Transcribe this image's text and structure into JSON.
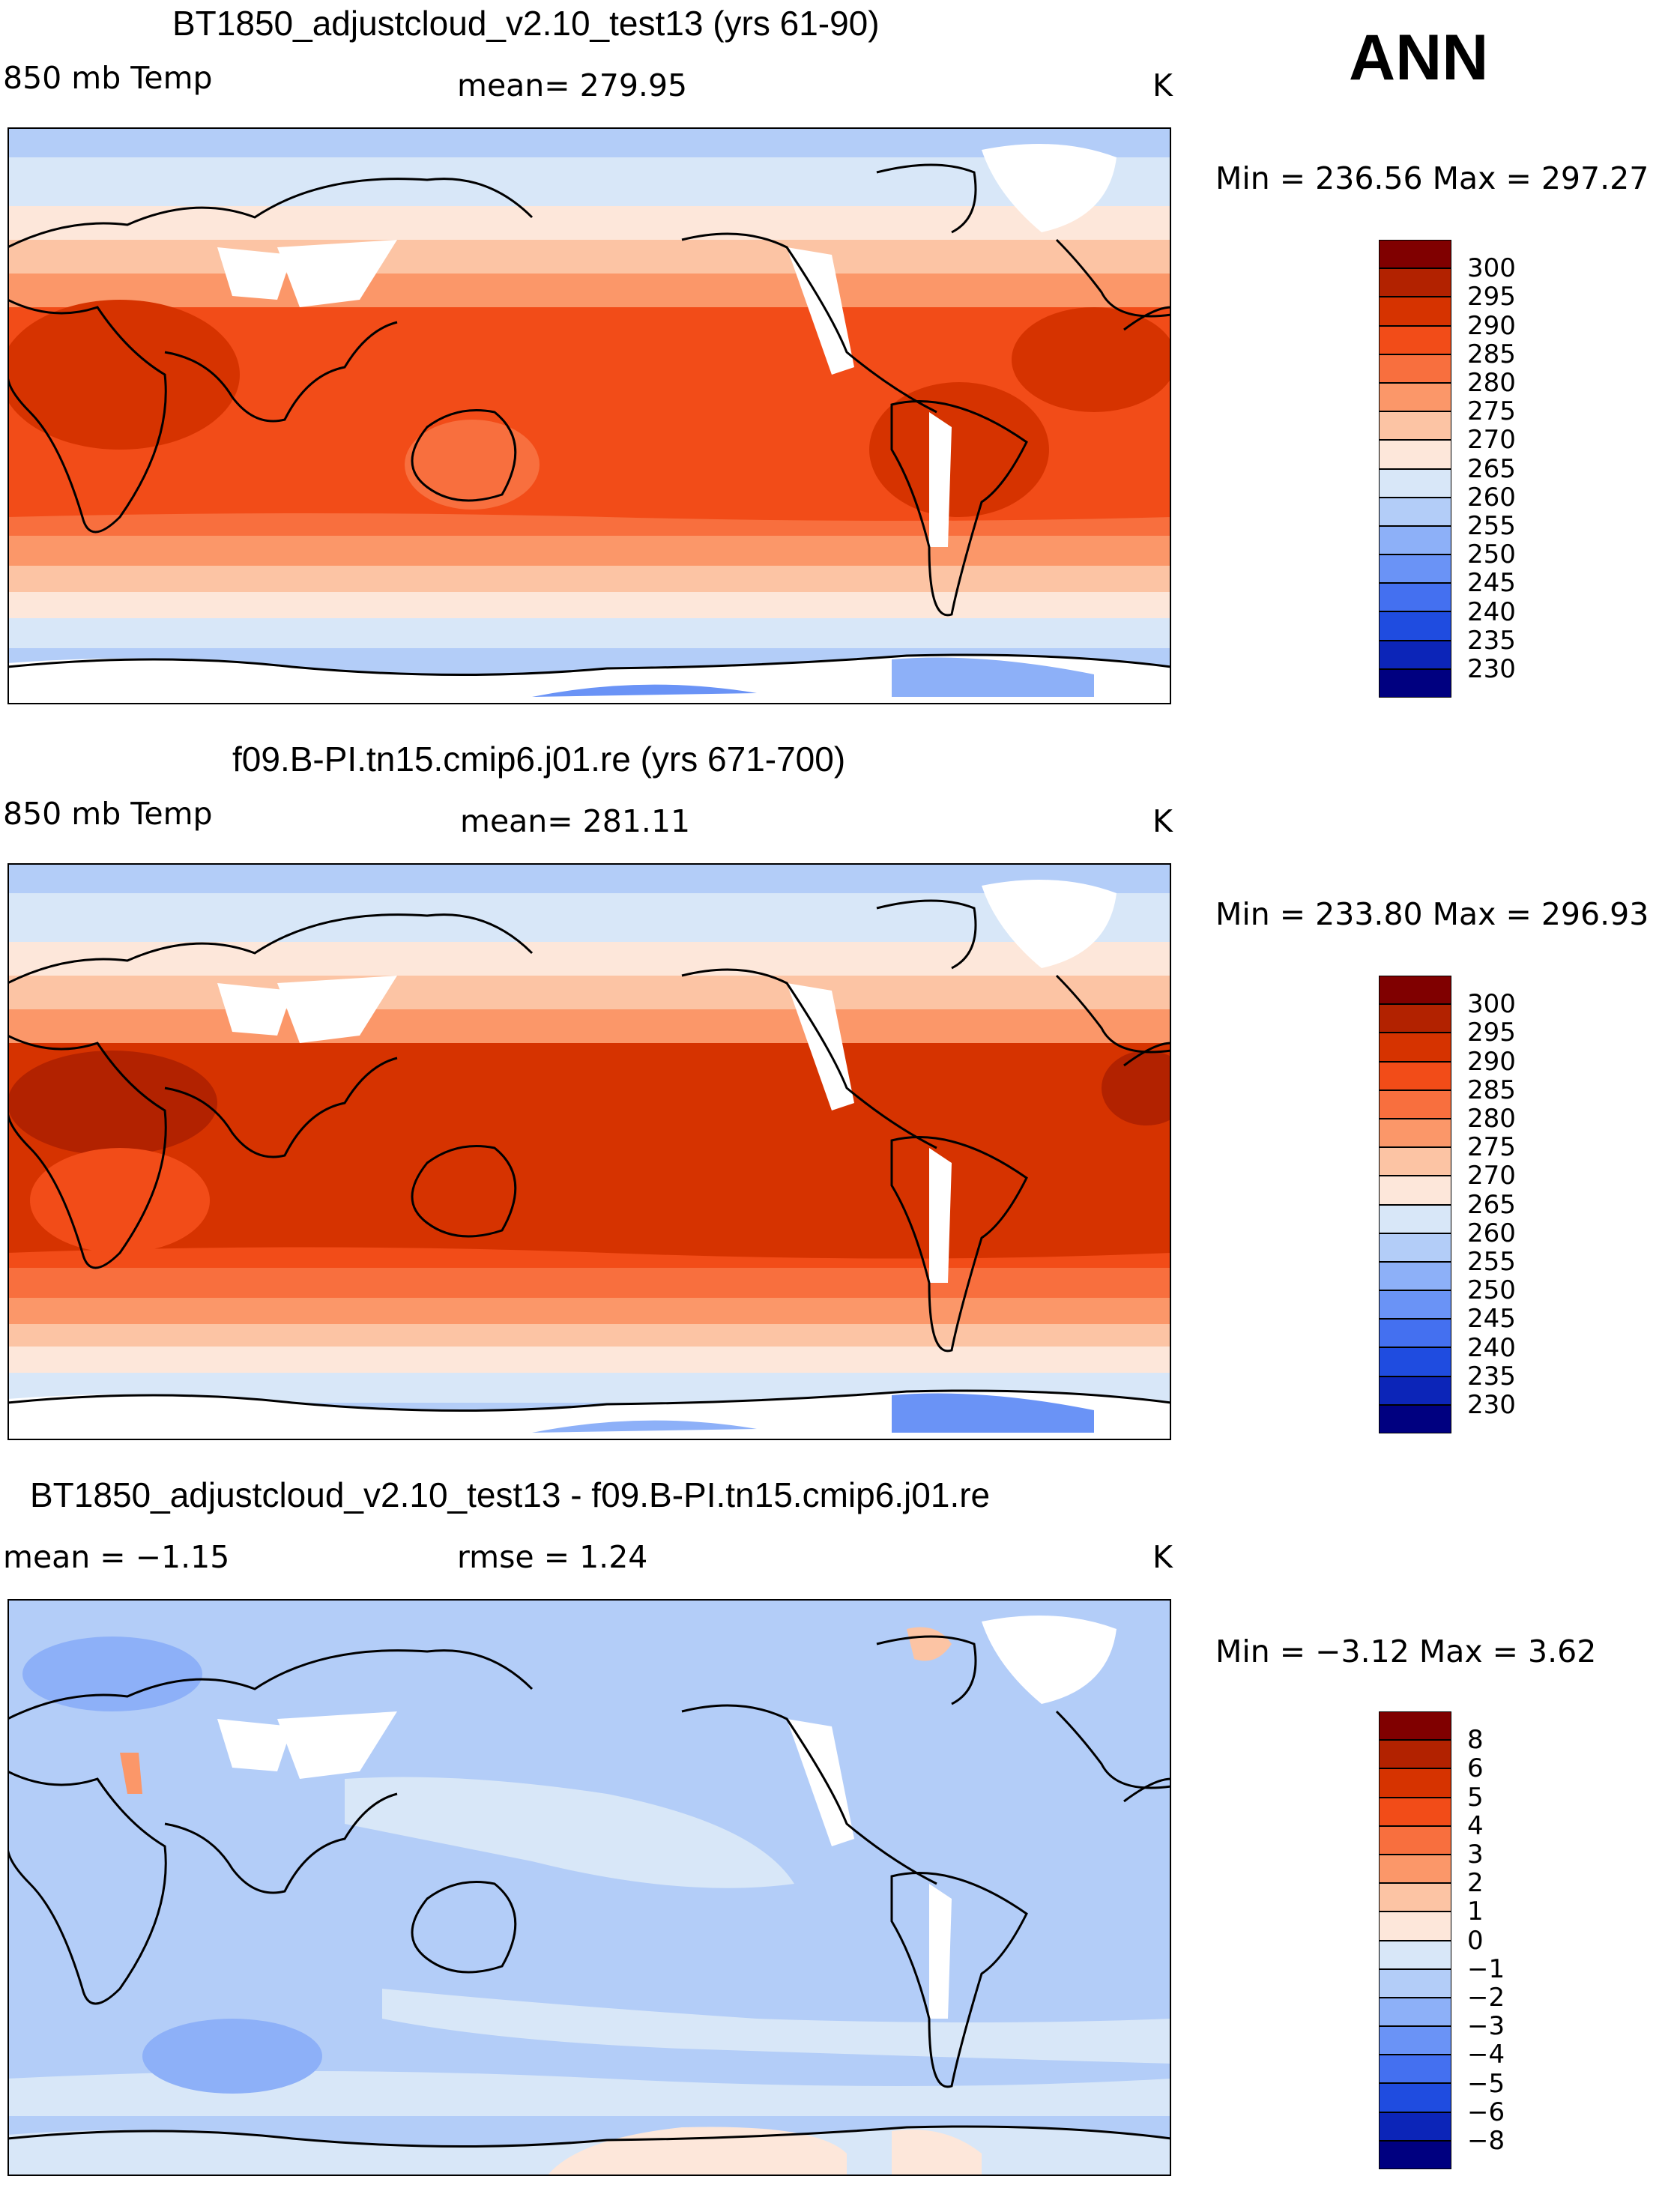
{
  "season": "ANN",
  "panels": [
    {
      "title": "BT1850_adjustcloud_v2.10_test13 (yrs 61-90)",
      "left_label": "850 mb Temp",
      "center_label": "mean=  279.95",
      "units": "K",
      "minmax": "Min = 236.56 Max = 297.27",
      "colorbar": {
        "labels": [
          "300",
          "295",
          "290",
          "285",
          "280",
          "275",
          "270",
          "265",
          "260",
          "255",
          "250",
          "245",
          "240",
          "235",
          "230"
        ],
        "colors": [
          "#800000",
          "#b22200",
          "#d63300",
          "#f24c18",
          "#f86f3e",
          "#fb9769",
          "#fcc4a4",
          "#fde7da",
          "#d8e7f8",
          "#b3cdf8",
          "#8db0f8",
          "#6a93f6",
          "#4470f0",
          "#1f4ce0",
          "#0c25b8",
          "#000080"
        ]
      }
    },
    {
      "title": "f09.B-PI.tn15.cmip6.j01.re (yrs 671-700)",
      "left_label": "850 mb Temp",
      "center_label": "mean=  281.11",
      "units": "K",
      "minmax": "Min = 233.80 Max = 296.93",
      "colorbar": {
        "labels": [
          "300",
          "295",
          "290",
          "285",
          "280",
          "275",
          "270",
          "265",
          "260",
          "255",
          "250",
          "245",
          "240",
          "235",
          "230"
        ],
        "colors": [
          "#800000",
          "#b22200",
          "#d63300",
          "#f24c18",
          "#f86f3e",
          "#fb9769",
          "#fcc4a4",
          "#fde7da",
          "#d8e7f8",
          "#b3cdf8",
          "#8db0f8",
          "#6a93f6",
          "#4470f0",
          "#1f4ce0",
          "#0c25b8",
          "#000080"
        ]
      }
    },
    {
      "title": "BT1850_adjustcloud_v2.10_test13 - f09.B-PI.tn15.cmip6.j01.re",
      "left_label": "mean =   −1.15",
      "center_label": "rmse =    1.24",
      "units": "K",
      "minmax": "Min =   −3.12 Max =    3.62",
      "colorbar": {
        "labels": [
          "8",
          "6",
          "5",
          "4",
          "3",
          "2",
          "1",
          "0",
          "−1",
          "−2",
          "−3",
          "−4",
          "−5",
          "−6",
          "−8"
        ],
        "colors": [
          "#800000",
          "#b22200",
          "#d63300",
          "#f24c18",
          "#f86f3e",
          "#fb9769",
          "#fcc4a4",
          "#fde7da",
          "#d8e7f8",
          "#b3cdf8",
          "#8db0f8",
          "#6a93f6",
          "#4470f0",
          "#1f4ce0",
          "#0c25b8",
          "#000080"
        ]
      }
    }
  ]
}
